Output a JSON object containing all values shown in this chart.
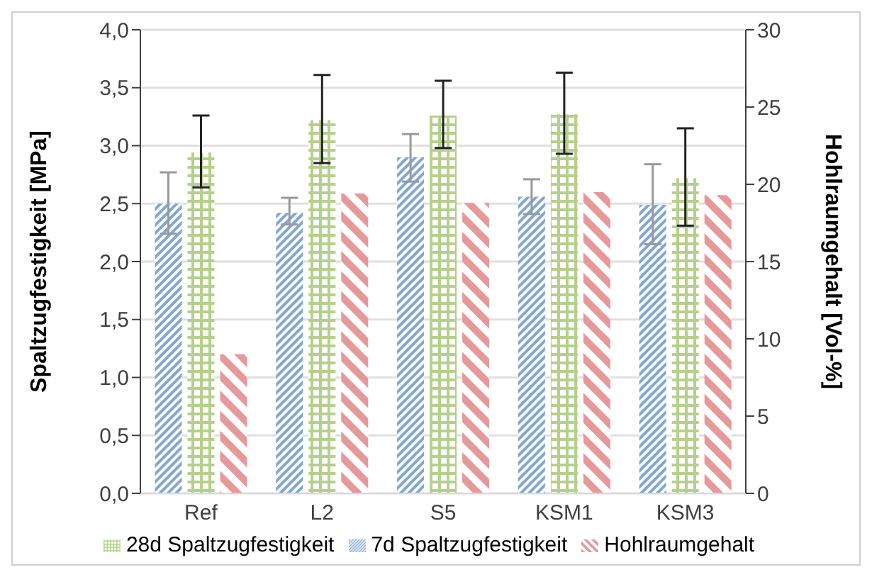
{
  "chart_data": {
    "type": "bar",
    "categories": [
      "Ref",
      "L2",
      "S5",
      "KSM1",
      "KSM3"
    ],
    "ylabel": "Spaltzugfestigkeit [MPa]",
    "y2label": "Hohlraumgehalt [Vol-%]",
    "ylim": [
      0,
      4
    ],
    "yticks": [
      {
        "value": 0,
        "label": "0,0"
      },
      {
        "value": 0.5,
        "label": "0,5"
      },
      {
        "value": 1,
        "label": "1,0"
      },
      {
        "value": 1.5,
        "label": "1,5"
      },
      {
        "value": 2,
        "label": "2,0"
      },
      {
        "value": 2.5,
        "label": "2,5"
      },
      {
        "value": 3,
        "label": "3,0"
      },
      {
        "value": 3.5,
        "label": "3,5"
      },
      {
        "value": 4,
        "label": "4,0"
      }
    ],
    "y2lim": [
      0,
      30
    ],
    "y2ticks": [
      0,
      5,
      10,
      15,
      20,
      25,
      30
    ],
    "series": [
      {
        "name": "7d Spaltzugfestigkeit",
        "color": "#7fa6d6",
        "values": [
          2.5,
          2.42,
          2.9,
          2.56,
          2.49
        ],
        "errors": [
          [
            2.24,
            2.77
          ],
          [
            2.32,
            2.55
          ],
          [
            2.69,
            3.1
          ],
          [
            2.41,
            2.71
          ],
          [
            2.15,
            2.84
          ]
        ]
      },
      {
        "name": "28d Spaltzugfestigkeit",
        "color": "#b5d08b",
        "values": [
          2.94,
          3.22,
          3.26,
          3.27,
          2.72
        ],
        "errors": [
          [
            2.64,
            3.26
          ],
          [
            2.85,
            3.61
          ],
          [
            2.98,
            3.56
          ],
          [
            2.93,
            3.63
          ],
          [
            2.31,
            3.15
          ]
        ]
      },
      {
        "name": "Hohlraumgehalt",
        "color": "#e6999a",
        "axis": "y2",
        "values": [
          9.0,
          19.4,
          18.8,
          19.5,
          19.3
        ]
      }
    ],
    "grid": "y",
    "legend": "bottom"
  }
}
